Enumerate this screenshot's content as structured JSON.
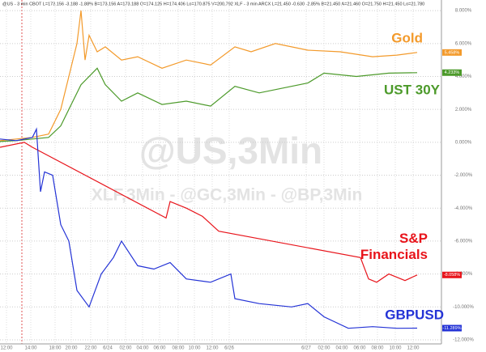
{
  "chart_data": {
    "type": "line",
    "header": "@US - 3 min CBOT L=173.156 -3.188 -1.88% B=173.156 A=173.188 O=174.125 H=174.406 Lo=170.875 V=200,792  XLF - 3 min ARCX L=21.450 -0.630 -2.85% B=21.450 A=21.460 O=21.750 H=21.450 Lo=21.780",
    "watermarks": [
      "@US,3Min",
      "XLF,3Min - @GC,3Min - @BP,3Min"
    ],
    "xlim": [
      0,
      545
    ],
    "ylim": [
      -12.1,
      8.4
    ],
    "yticks": [
      {
        "value": 8,
        "label": "8.000%"
      },
      {
        "value": 6,
        "label": "6.000%"
      },
      {
        "value": 4,
        "label": "4.000%"
      },
      {
        "value": 2,
        "label": "2.000%"
      },
      {
        "value": 0,
        "label": "0.000%"
      },
      {
        "value": -2,
        "label": "-2.000%"
      },
      {
        "value": -4,
        "label": "-4.000%"
      },
      {
        "value": -6,
        "label": "-6.000%"
      },
      {
        "value": -8,
        "label": "-8.000%"
      },
      {
        "value": -10,
        "label": "-10.000%"
      },
      {
        "value": -12,
        "label": "-12.000%"
      }
    ],
    "xticks": [
      {
        "value": 8,
        "label": "12:00"
      },
      {
        "value": 38,
        "label": "14:00"
      },
      {
        "value": 68,
        "label": "18:00"
      },
      {
        "value": 88,
        "label": "20:00"
      },
      {
        "value": 112,
        "label": "22:00"
      },
      {
        "value": 133,
        "label": "6/24"
      },
      {
        "value": 155,
        "label": "02:00"
      },
      {
        "value": 176,
        "label": "04:00"
      },
      {
        "value": 197,
        "label": "06:00"
      },
      {
        "value": 220,
        "label": "08:00"
      },
      {
        "value": 240,
        "label": "10:00"
      },
      {
        "value": 262,
        "label": "12:00"
      },
      {
        "value": 283,
        "label": "6/26"
      },
      {
        "value": 378,
        "label": "6/27"
      },
      {
        "value": 400,
        "label": "02:00"
      },
      {
        "value": 422,
        "label": "04:00"
      },
      {
        "value": 444,
        "label": "06:00"
      },
      {
        "value": 466,
        "label": "08:00"
      },
      {
        "value": 488,
        "label": "10:00"
      },
      {
        "value": 510,
        "label": "12:00"
      }
    ],
    "grid": true,
    "series": [
      {
        "name": "Gold",
        "color": "#f39a2b",
        "x": [
          0,
          20,
          40,
          60,
          75,
          85,
          95,
          100,
          105,
          110,
          120,
          130,
          150,
          170,
          200,
          230,
          260,
          290,
          310,
          340,
          380,
          420,
          460,
          490,
          515
        ],
        "values": [
          0.1,
          0.2,
          0.3,
          0.5,
          2,
          4,
          6,
          8,
          5,
          6.5,
          5.5,
          5.8,
          5,
          5.2,
          4.5,
          5,
          4.7,
          5.8,
          5.5,
          6,
          5.6,
          5.5,
          5.2,
          5.3,
          5.458
        ],
        "last": {
          "value": 5.458,
          "label": "5.458%"
        }
      },
      {
        "name": "UST 30Y",
        "color": "#4c9a2a",
        "x": [
          0,
          20,
          40,
          60,
          75,
          90,
          100,
          120,
          130,
          150,
          170,
          200,
          230,
          260,
          290,
          320,
          350,
          380,
          400,
          440,
          480,
          515
        ],
        "values": [
          0.05,
          0.1,
          0.2,
          0.3,
          1,
          2.5,
          3.5,
          4.5,
          3.5,
          2.5,
          3,
          2.3,
          2.5,
          2.2,
          3.4,
          3,
          3.3,
          3.6,
          4.2,
          4,
          4.2,
          4.233
        ],
        "last": {
          "value": 4.233,
          "label": "4.233%"
        }
      },
      {
        "name": "S&P Financials",
        "color": "#e8141b",
        "x": [
          0,
          30,
          40,
          205,
          210,
          230,
          250,
          270,
          445,
          455,
          465,
          480,
          500,
          515
        ],
        "values": [
          -0.3,
          0,
          -0.3,
          -4.6,
          -3.6,
          -4,
          -4.5,
          -5.4,
          -7,
          -8.3,
          -8.5,
          -8,
          -8.4,
          -8.058
        ],
        "last": {
          "value": -8.058,
          "label": "-8.058%"
        }
      },
      {
        "name": "GBPUSD",
        "color": "#2433d6",
        "x": [
          0,
          20,
          40,
          45,
          50,
          55,
          65,
          75,
          85,
          95,
          110,
          125,
          140,
          150,
          170,
          190,
          210,
          230,
          260,
          285,
          290,
          320,
          360,
          380,
          400,
          430,
          460,
          490,
          515
        ],
        "values": [
          0.2,
          0.1,
          0.3,
          0.8,
          -3,
          -1.8,
          -2,
          -5,
          -6,
          -9,
          -10,
          -8,
          -7,
          -6,
          -7.5,
          -7.7,
          -7.3,
          -8.3,
          -8.5,
          -8,
          -9.5,
          -9.8,
          -10,
          -9.8,
          -10.6,
          -11.3,
          -11.2,
          -11.3,
          -11.289
        ],
        "last": {
          "value": -11.289,
          "label": "-11.289%"
        }
      }
    ]
  }
}
